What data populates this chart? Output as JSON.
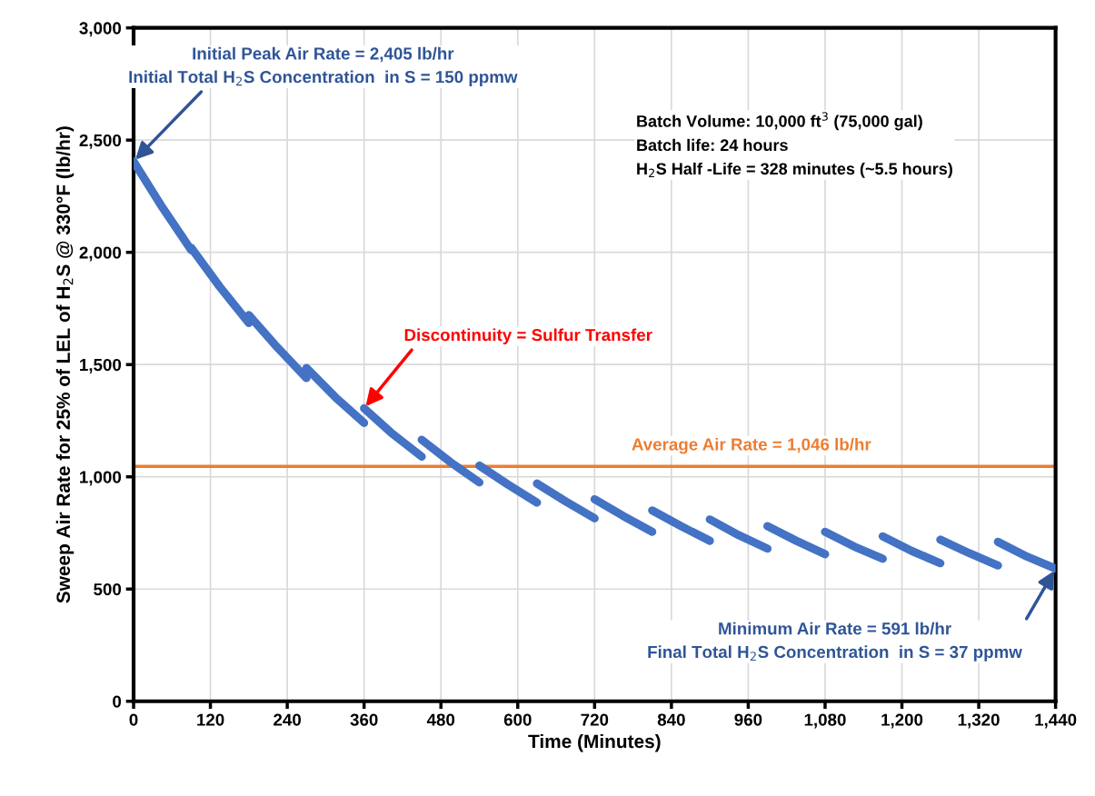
{
  "chart_data": {
    "type": "line",
    "xlabel": "Time (Minutes)",
    "ylabel": "Sweep Air Rate for 25% of LEL of H$_{2}$S @ 330°F (lb/hr)",
    "xlim": [
      0,
      1440
    ],
    "ylim": [
      0,
      3000
    ],
    "xticks": [
      0,
      120,
      240,
      360,
      480,
      600,
      720,
      840,
      960,
      {
        "value": 1080,
        "label": "1,080"
      },
      {
        "value": 1200,
        "label": "1,200"
      },
      {
        "value": 1320,
        "label": "1,320"
      },
      {
        "value": 1440,
        "label": "1,440"
      }
    ],
    "yticks": [
      0,
      500,
      {
        "value": 1000,
        "label": "1,000"
      },
      {
        "value": 1500,
        "label": "1,500"
      },
      {
        "value": 2000,
        "label": "2,000"
      },
      {
        "value": 2500,
        "label": "2,500"
      },
      {
        "value": 3000,
        "label": "3,000"
      }
    ],
    "grid": true,
    "legend": false,
    "series": [
      {
        "color": "#4472c4",
        "x": [
          0,
          45,
          90,
          null,
          90,
          135,
          180,
          null,
          180,
          225,
          270,
          null,
          270,
          315,
          360,
          null,
          360,
          405,
          450,
          null,
          450,
          495,
          540,
          null,
          540,
          585,
          630,
          null,
          630,
          675,
          720,
          null,
          720,
          765,
          810,
          null,
          810,
          855,
          900,
          null,
          900,
          945,
          990,
          null,
          990,
          1035,
          1080,
          null,
          1080,
          1125,
          1170,
          null,
          1170,
          1215,
          1260,
          null,
          1260,
          1305,
          1350,
          null,
          1350,
          1395,
          1440
        ],
        "values": [
          2405,
          2200,
          2010,
          null,
          2020,
          1845,
          1685,
          null,
          1720,
          1575,
          1440,
          null,
          1485,
          1355,
          1240,
          null,
          1305,
          1190,
          1090,
          null,
          1165,
          1065,
          975,
          null,
          1050,
          965,
          885,
          null,
          970,
          890,
          815,
          null,
          900,
          825,
          755,
          null,
          850,
          780,
          715,
          null,
          810,
          740,
          680,
          null,
          780,
          715,
          655,
          null,
          755,
          690,
          635,
          null,
          735,
          670,
          615,
          null,
          720,
          660,
          605,
          null,
          710,
          645,
          591
        ]
      }
    ],
    "ref_lines": [
      {
        "axis": "y",
        "value": 1046,
        "label": "Average Air Rate = 1,046 lb/hr",
        "color": "#ed7d31"
      }
    ],
    "annotations": [
      {
        "text": "Initial Peak Air Rate = 2,405 lb/hr\nInitial Total H$_{2}$S Concentration  in S = 150 ppmw",
        "x": 0,
        "y": 2405
      },
      {
        "text": "Discontinuity = Sulfur Transfer",
        "x": 360,
        "y": 1305
      },
      {
        "text": "Minimum Air Rate = 591 lb/hr\nFinal Total H$_{2}$S Concentration  in S = 37 ppmw",
        "x": 1440,
        "y": 591
      },
      "Batch Volume: 10,000 ft$^{3}$ (75,000 gal)\nBatch life: 24 hours\nH$_{2}$S Half -Life = 328 minutes (~5.5 hours)"
    ]
  }
}
